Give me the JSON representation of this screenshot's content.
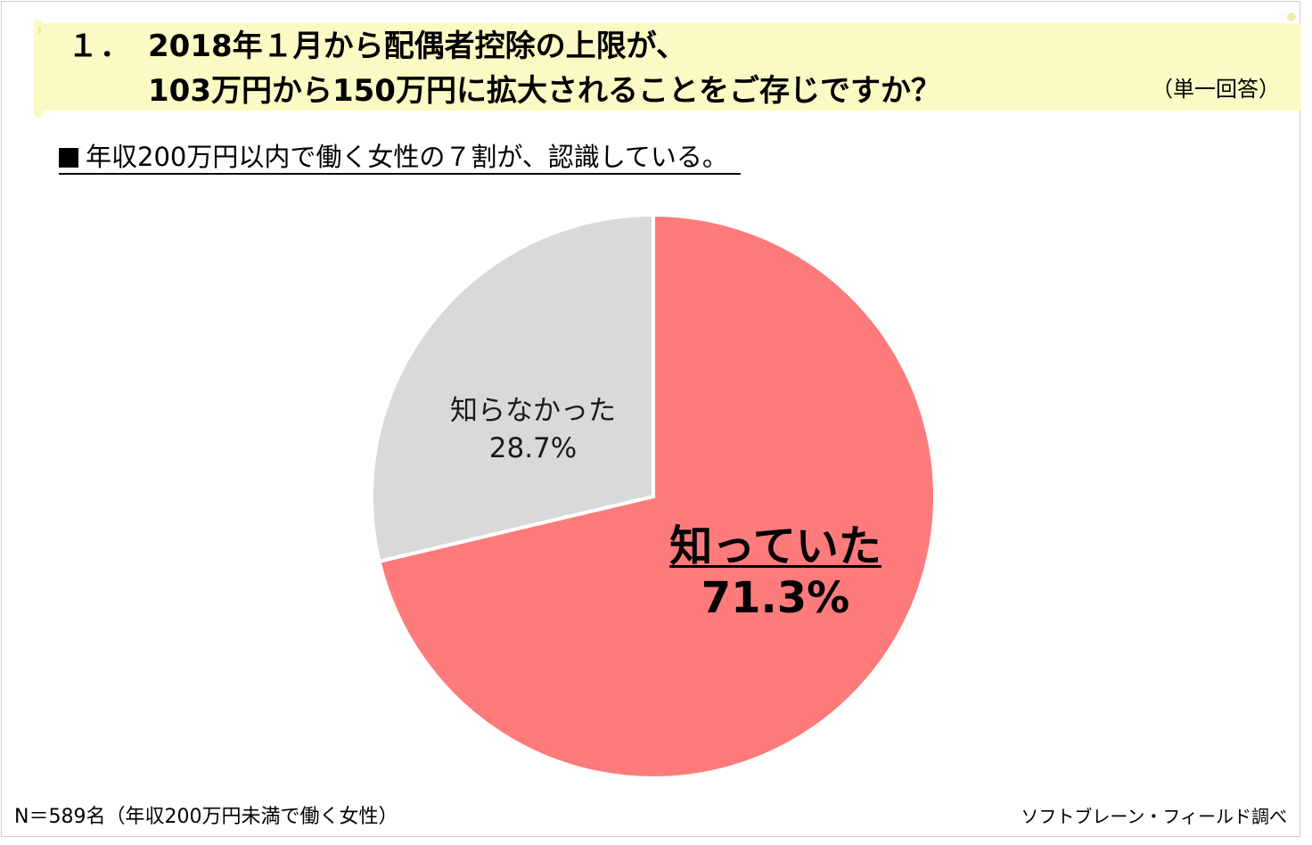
{
  "header": {
    "number": "１．",
    "title_line1": "2018年１月から配偶者控除の上限が、",
    "title_line2": "103万円から150万円に拡大されることをご存じですか？",
    "answer_type": "（単一回答）"
  },
  "subtitle": "年収200万円以内で働く女性の７割が、認識している。",
  "chart_data": {
    "type": "pie",
    "title": "2018年１月から配偶者控除の上限が、103万円から150万円に拡大されることをご存じですか？",
    "series": [
      {
        "name": "知っていた",
        "value": 71.3,
        "label": "71.3%",
        "color": "#ff7b7b"
      },
      {
        "name": "知らなかった",
        "value": 28.7,
        "label": "28.7%",
        "color": "#d9d9d9"
      }
    ],
    "start_angle_deg": 0,
    "direction": "clockwise"
  },
  "footer": {
    "sample": "N＝589名（年収200万円未満で働く女性）",
    "source": "ソフトブレーン・フィールド調べ"
  }
}
